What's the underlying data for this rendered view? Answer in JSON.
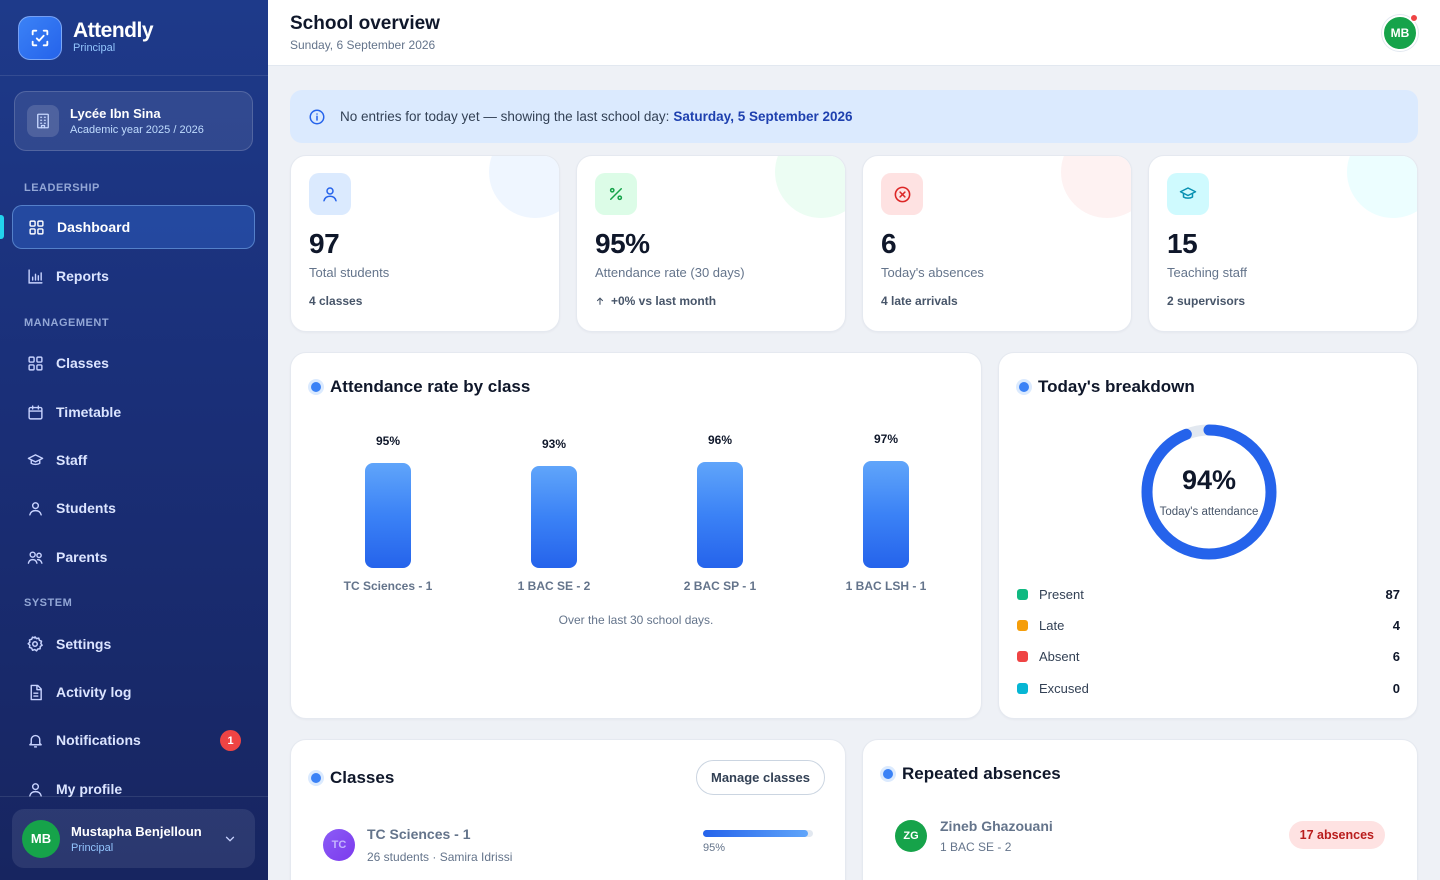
{
  "brand": {
    "name": "Attendly",
    "role": "Principal"
  },
  "school": {
    "name": "Lycée Ibn Sina",
    "year": "Academic year 2025 / 2026"
  },
  "nav": {
    "sections": {
      "leadership": "LEADERSHIP",
      "management": "MANAGEMENT",
      "system": "SYSTEM"
    },
    "items": {
      "dashboard": "Dashboard",
      "reports": "Reports",
      "classes": "Classes",
      "timetable": "Timetable",
      "staff": "Staff",
      "students": "Students",
      "parents": "Parents",
      "settings": "Settings",
      "activity_log": "Activity log",
      "notifications": "Notifications",
      "my_profile": "My profile"
    },
    "notifications_badge": "1"
  },
  "user": {
    "initials": "MB",
    "name": "Mustapha Benjelloun",
    "role": "Principal"
  },
  "header": {
    "title": "School overview",
    "date": "Sunday, 6 September 2026",
    "avatar_initials": "MB"
  },
  "banner": {
    "text": "No entries for today yet — showing the last school day:",
    "highlight": "Saturday, 5 September 2026"
  },
  "stats": [
    {
      "value": "97",
      "label": "Total students",
      "sub": "4 classes",
      "icon": "user-icon",
      "color": "#3b82f6"
    },
    {
      "value": "95%",
      "label": "Attendance rate (30 days)",
      "sub": "+0% vs last month",
      "icon": "percent-icon",
      "color": "#16a34a"
    },
    {
      "value": "6",
      "label": "Today's absences",
      "sub": "4 late arrivals",
      "icon": "x-circle-icon",
      "color": "#dc2626"
    },
    {
      "value": "15",
      "label": "Teaching staff",
      "sub": "2 supervisors",
      "icon": "graduation-cap-icon",
      "color": "#0891b2"
    }
  ],
  "attendance_chart": {
    "title": "Attendance rate by class",
    "caption": "Over the last 30 school days."
  },
  "chart_data": {
    "type": "bar",
    "title": "Attendance rate by class",
    "categories": [
      "TC Sciences - 1",
      "1 BAC SE - 2",
      "2 BAC SP - 1",
      "1 BAC LSH - 1"
    ],
    "values": [
      95,
      93,
      96,
      97
    ],
    "value_labels": [
      "95%",
      "93%",
      "96%",
      "97%"
    ],
    "xlabel": "",
    "ylabel": ""
  },
  "breakdown": {
    "title": "Today's breakdown",
    "percent": "94%",
    "percent_value": 94,
    "percent_label": "Today's attendance",
    "items": [
      {
        "label": "Present",
        "value": "87",
        "color": "#10b981"
      },
      {
        "label": "Late",
        "value": "4",
        "color": "#f59e0b"
      },
      {
        "label": "Absent",
        "value": "6",
        "color": "#ef4444"
      },
      {
        "label": "Excused",
        "value": "0",
        "color": "#06b6d4"
      }
    ]
  },
  "classes": {
    "title": "Classes",
    "manage_label": "Manage classes",
    "rows": [
      {
        "initials": "TC",
        "name": "TC Sciences - 1",
        "meta": "26 students · Samira Idrissi",
        "rate": "95%",
        "rate_value": 95
      }
    ]
  },
  "repeated_absences": {
    "title": "Repeated absences",
    "rows": [
      {
        "initials": "ZG",
        "name": "Zineb Ghazouani",
        "class": "1 BAC SE - 2",
        "count": "17 absences"
      }
    ]
  }
}
